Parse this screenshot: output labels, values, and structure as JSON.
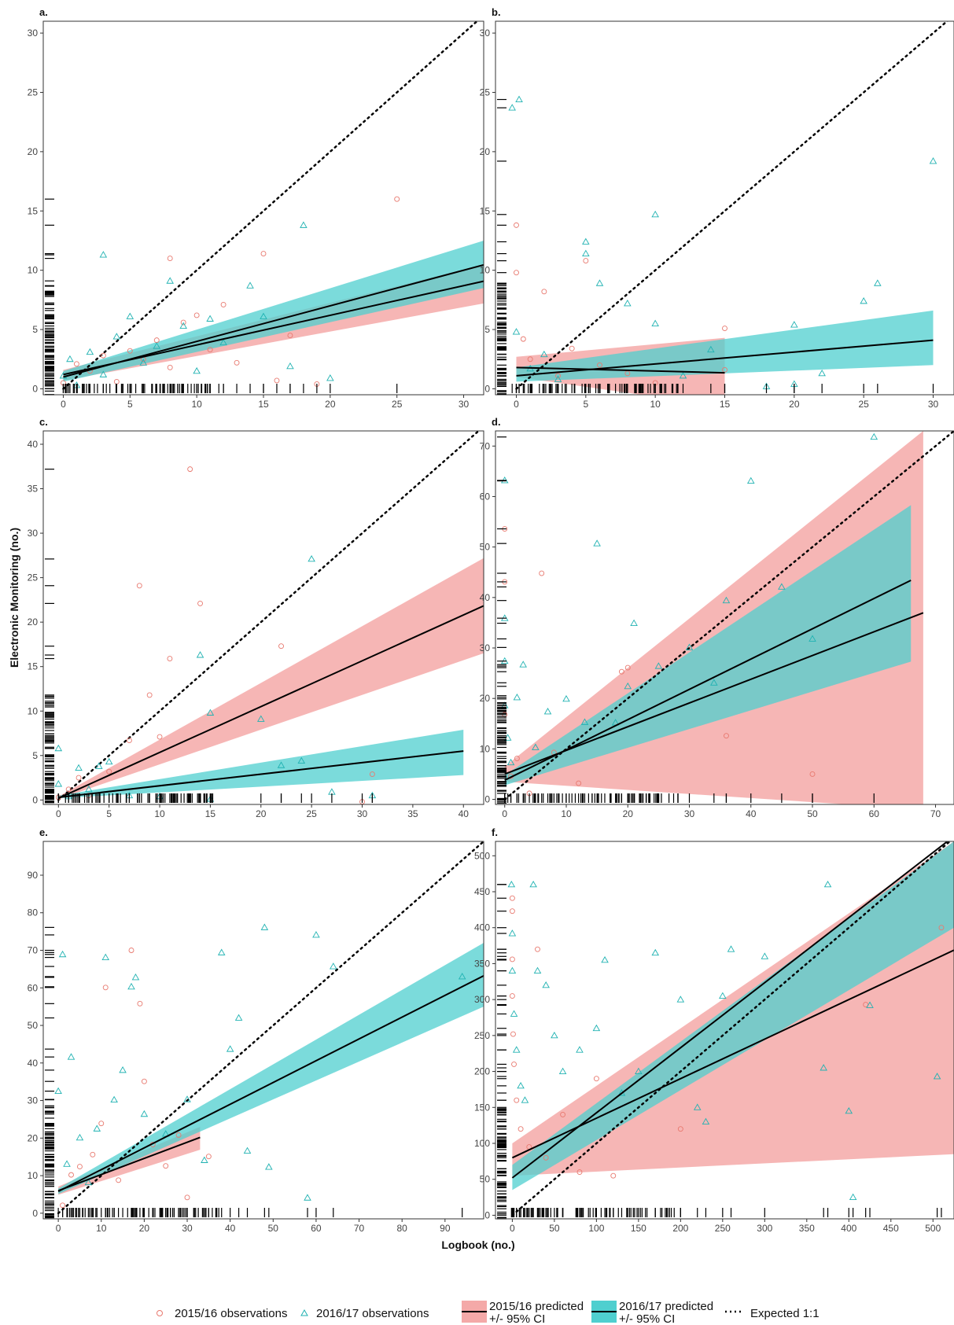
{
  "figure": {
    "ylabel": "Electronic Monitoring (no.)",
    "xlabel": "Logbook (no.)"
  },
  "legend": {
    "obs_2015": "2015/16 observations",
    "obs_2016": "2016/17 observations",
    "pred_2015_line1": "2015/16 predicted",
    "pred_2015_line2": "+/- 95% CI",
    "pred_2016_line1": "2016/17 predicted",
    "pred_2016_line2": "+/- 95% CI",
    "expected": "Expected 1:1"
  },
  "colors": {
    "obs_2015": "#e8796f",
    "obs_2016": "#20b2b2",
    "ci_2015": "#f4a9a8",
    "ci_2016": "#4fcfcf",
    "line": "#000000"
  },
  "chart_data": [
    {
      "label": "a.",
      "type": "scatter",
      "xlim": [
        -1.5,
        31.5
      ],
      "ylim": [
        -0.5,
        31
      ],
      "xticks": [
        0,
        5,
        10,
        15,
        20,
        25,
        30
      ],
      "yticks": [
        0,
        5,
        10,
        15,
        20,
        25,
        30
      ],
      "series": [
        {
          "name": "2015/16",
          "intercept": 1.2,
          "slope": 0.25,
          "xmax": 31.5,
          "ci": [
            [
              0,
              0.7,
              1.6
            ],
            [
              31.5,
              7.2,
              10.5
            ]
          ]
        },
        {
          "name": "2016/17",
          "intercept": 1.0,
          "slope": 0.3,
          "xmax": 31.5,
          "ci": [
            [
              0,
              0.6,
              1.5
            ],
            [
              31.5,
              8.5,
              12.5
            ]
          ]
        }
      ],
      "obs_2015": [
        [
          0,
          0.5
        ],
        [
          1,
          2.1
        ],
        [
          2,
          1.5
        ],
        [
          3,
          2.8
        ],
        [
          4,
          0.6
        ],
        [
          5,
          3.2
        ],
        [
          6,
          2.5
        ],
        [
          7,
          4.1
        ],
        [
          8,
          11
        ],
        [
          8,
          1.8
        ],
        [
          9,
          5.6
        ],
        [
          10,
          6.2
        ],
        [
          11,
          3.3
        ],
        [
          12,
          7.1
        ],
        [
          13,
          2.2
        ],
        [
          15,
          11.4
        ],
        [
          16,
          0.7
        ],
        [
          17,
          4.5
        ],
        [
          19,
          0.4
        ],
        [
          25,
          16
        ]
      ],
      "obs_2016": [
        [
          0,
          1.1
        ],
        [
          0.5,
          2.5
        ],
        [
          1,
          0.3
        ],
        [
          2,
          3.1
        ],
        [
          3,
          11.3
        ],
        [
          3,
          1.2
        ],
        [
          4,
          4.4
        ],
        [
          5,
          6.1
        ],
        [
          6,
          2.2
        ],
        [
          7,
          3.6
        ],
        [
          8,
          9.1
        ],
        [
          9,
          5.3
        ],
        [
          10,
          1.5
        ],
        [
          11,
          5.9
        ],
        [
          12,
          3.9
        ],
        [
          14,
          8.7
        ],
        [
          15,
          6.1
        ],
        [
          17,
          1.9
        ],
        [
          18,
          13.8
        ],
        [
          20,
          0.9
        ]
      ]
    },
    {
      "label": "b.",
      "type": "scatter",
      "xlim": [
        -1.5,
        31.5
      ],
      "ylim": [
        -0.5,
        31
      ],
      "xticks": [
        0,
        5,
        10,
        15,
        20,
        25,
        30
      ],
      "yticks": [
        0,
        5,
        10,
        15,
        20,
        25,
        30
      ],
      "series": [
        {
          "name": "2015/16",
          "intercept": 1.8,
          "slope": -0.03,
          "xmax": 15,
          "ci": [
            [
              0,
              1.0,
              2.7
            ],
            [
              15,
              -1.5,
              4.3
            ]
          ]
        },
        {
          "name": "2016/17",
          "intercept": 1.1,
          "slope": 0.1,
          "xmax": 30,
          "ci": [
            [
              0,
              0.6,
              1.8
            ],
            [
              30,
              2.0,
              6.6
            ]
          ]
        }
      ],
      "obs_2015": [
        [
          0,
          13.8
        ],
        [
          0,
          9.8
        ],
        [
          0.5,
          4.2
        ],
        [
          1,
          2.5
        ],
        [
          2,
          8.2
        ],
        [
          3,
          1.1
        ],
        [
          4,
          3.4
        ],
        [
          5,
          10.8
        ],
        [
          6,
          2.0
        ],
        [
          8,
          1.3
        ],
        [
          10,
          0.5
        ],
        [
          15,
          5.1
        ],
        [
          15,
          1.6
        ]
      ],
      "obs_2016": [
        [
          -0.3,
          23.7
        ],
        [
          0.2,
          24.4
        ],
        [
          0,
          4.8
        ],
        [
          1,
          1.7
        ],
        [
          2,
          2.9
        ],
        [
          3,
          0.8
        ],
        [
          5,
          12.4
        ],
        [
          5,
          11.4
        ],
        [
          6,
          8.9
        ],
        [
          8,
          7.2
        ],
        [
          10,
          14.7
        ],
        [
          10,
          5.5
        ],
        [
          12,
          1.1
        ],
        [
          14,
          3.3
        ],
        [
          18,
          0.2
        ],
        [
          20,
          5.4
        ],
        [
          20,
          0.4
        ],
        [
          22,
          1.3
        ],
        [
          25,
          7.4
        ],
        [
          26,
          8.9
        ],
        [
          30,
          19.2
        ]
      ]
    },
    {
      "label": "c.",
      "type": "scatter",
      "xlim": [
        -1.5,
        42
      ],
      "ylim": [
        -0.5,
        41.5
      ],
      "xticks": [
        0,
        5,
        10,
        15,
        20,
        25,
        30,
        35,
        40
      ],
      "yticks": [
        0,
        5,
        10,
        15,
        20,
        25,
        30,
        35,
        40
      ],
      "series": [
        {
          "name": "2015/16",
          "intercept": 0.2,
          "slope": 0.515,
          "xmax": 42,
          "ci": [
            [
              0,
              0.1,
              0.4
            ],
            [
              42,
              16.5,
              27.2
            ]
          ]
        },
        {
          "name": "2016/17",
          "intercept": 0.3,
          "slope": 0.13,
          "xmax": 40,
          "ci": [
            [
              0,
              0.2,
              0.5
            ],
            [
              40,
              2.8,
              7.9
            ]
          ]
        }
      ],
      "obs_2015": [
        [
          0,
          0.3
        ],
        [
          1,
          1.2
        ],
        [
          2,
          2.5
        ],
        [
          3,
          0.5
        ],
        [
          5,
          3.2
        ],
        [
          7,
          6.7
        ],
        [
          8,
          24.1
        ],
        [
          9,
          11.8
        ],
        [
          10,
          7.1
        ],
        [
          11,
          15.9
        ],
        [
          13,
          37.2
        ],
        [
          14,
          22.1
        ],
        [
          22,
          17.3
        ],
        [
          31,
          2.9
        ],
        [
          30,
          -0.2
        ]
      ],
      "obs_2016": [
        [
          0,
          5.8
        ],
        [
          0,
          1.8
        ],
        [
          1,
          0.4
        ],
        [
          2,
          3.6
        ],
        [
          3,
          1.2
        ],
        [
          4,
          3.8
        ],
        [
          5,
          4.3
        ],
        [
          7,
          0.5
        ],
        [
          10,
          0.4
        ],
        [
          14,
          16.3
        ],
        [
          15,
          9.8
        ],
        [
          15,
          0.1
        ],
        [
          20,
          9.1
        ],
        [
          22,
          3.9
        ],
        [
          24,
          4.4
        ],
        [
          25,
          27.1
        ],
        [
          27,
          0.9
        ],
        [
          31,
          0.5
        ]
      ]
    },
    {
      "label": "d.",
      "type": "scatter",
      "xlim": [
        -1.5,
        73
      ],
      "ylim": [
        -1,
        73
      ],
      "xticks": [
        0,
        10,
        20,
        30,
        40,
        50,
        60,
        70
      ],
      "yticks": [
        0,
        10,
        20,
        30,
        40,
        50,
        60,
        70
      ],
      "series": [
        {
          "name": "2015/16",
          "intercept": 5.0,
          "slope": 0.47,
          "xmax": 68,
          "ci": [
            [
              0,
              3.5,
              6.5
            ],
            [
              68,
              -2,
              73
            ]
          ]
        },
        {
          "name": "2016/17",
          "intercept": 3.8,
          "slope": 0.6,
          "xmax": 66,
          "ci": [
            [
              0,
              2.8,
              4.8
            ],
            [
              66,
              27.3,
              58.3
            ]
          ]
        }
      ],
      "obs_2015": [
        [
          0,
          53.6
        ],
        [
          0,
          43.1
        ],
        [
          0,
          16.8
        ],
        [
          1,
          4.6
        ],
        [
          2,
          8.1
        ],
        [
          4,
          1.2
        ],
        [
          6,
          44.8
        ],
        [
          8,
          9.3
        ],
        [
          12,
          3.2
        ],
        [
          19,
          25.3
        ],
        [
          20,
          26.1
        ],
        [
          36,
          12.6
        ],
        [
          50,
          5.0
        ]
      ],
      "obs_2016": [
        [
          0,
          63.2
        ],
        [
          0,
          35.9
        ],
        [
          0,
          27.4
        ],
        [
          0,
          18.6
        ],
        [
          0.5,
          12.2
        ],
        [
          1,
          7.3
        ],
        [
          2,
          20.2
        ],
        [
          3,
          26.7
        ],
        [
          5,
          10.3
        ],
        [
          7,
          17.4
        ],
        [
          10,
          19.9
        ],
        [
          13,
          15.3
        ],
        [
          15,
          50.7
        ],
        [
          18,
          15.2
        ],
        [
          20,
          22.4
        ],
        [
          21,
          34.9
        ],
        [
          25,
          26.4
        ],
        [
          30,
          30.1
        ],
        [
          34,
          23.1
        ],
        [
          36,
          39.4
        ],
        [
          40,
          63.1
        ],
        [
          45,
          42.1
        ],
        [
          50,
          31.8
        ],
        [
          60,
          71.8
        ]
      ]
    },
    {
      "label": "e.",
      "type": "scatter",
      "xlim": [
        -3.5,
        99
      ],
      "ylim": [
        -1.5,
        99
      ],
      "xticks": [
        0,
        10,
        20,
        30,
        40,
        50,
        60,
        70,
        80,
        90
      ],
      "yticks": [
        0,
        10,
        20,
        30,
        40,
        50,
        60,
        70,
        80,
        90
      ],
      "series": [
        {
          "name": "2015/16",
          "intercept": 6.0,
          "slope": 0.43,
          "xmax": 33,
          "ci": [
            [
              0,
              4.9,
              7.1
            ],
            [
              33,
              16.9,
              23.0
            ]
          ]
        },
        {
          "name": "2016/17",
          "intercept": 5.8,
          "slope": 0.58,
          "xmax": 99,
          "ci": [
            [
              0,
              5.1,
              6.6
            ],
            [
              99,
              55.0,
              72.0
            ]
          ]
        }
      ],
      "obs_2015": [
        [
          1,
          2.1
        ],
        [
          3,
          10.2
        ],
        [
          5,
          12.4
        ],
        [
          8,
          15.6
        ],
        [
          10,
          23.9
        ],
        [
          11,
          60.1
        ],
        [
          14,
          8.8
        ],
        [
          17,
          70.0
        ],
        [
          19,
          55.8
        ],
        [
          20,
          35.1
        ],
        [
          22,
          18.3
        ],
        [
          25,
          12.6
        ],
        [
          28,
          20.8
        ],
        [
          30,
          4.2
        ],
        [
          35,
          15.1
        ]
      ],
      "obs_2016": [
        [
          0,
          32.5
        ],
        [
          1,
          68.9
        ],
        [
          2,
          13.1
        ],
        [
          3,
          41.6
        ],
        [
          5,
          20.1
        ],
        [
          7,
          8.2
        ],
        [
          9,
          22.5
        ],
        [
          11,
          68.1
        ],
        [
          13,
          30.2
        ],
        [
          15,
          38.1
        ],
        [
          17,
          60.3
        ],
        [
          18,
          62.8
        ],
        [
          20,
          26.4
        ],
        [
          25,
          21.1
        ],
        [
          30,
          30.3
        ],
        [
          34,
          14.1
        ],
        [
          38,
          69.4
        ],
        [
          40,
          43.7
        ],
        [
          42,
          52.0
        ],
        [
          44,
          16.6
        ],
        [
          48,
          76.1
        ],
        [
          49,
          12.3
        ],
        [
          58,
          4.1
        ],
        [
          60,
          74.1
        ],
        [
          64,
          65.7
        ],
        [
          94,
          63.0
        ]
      ]
    },
    {
      "label": "f.",
      "type": "scatter",
      "xlim": [
        -20,
        525
      ],
      "ylim": [
        -5,
        520
      ],
      "xticks": [
        0,
        50,
        100,
        150,
        200,
        250,
        300,
        350,
        400,
        450,
        500
      ],
      "yticks": [
        0,
        50,
        100,
        150,
        200,
        250,
        300,
        350,
        400,
        450,
        500
      ],
      "series": [
        {
          "name": "2015/16",
          "intercept": 80,
          "slope": 0.55,
          "xmax": 525,
          "ci": [
            [
              0,
              55,
              100
            ],
            [
              525,
              85,
              520
            ]
          ]
        },
        {
          "name": "2016/17",
          "intercept": 52,
          "slope": 0.905,
          "xmax": 525,
          "ci": [
            [
              0,
              35,
              70
            ],
            [
              525,
              400,
              520
            ]
          ]
        }
      ],
      "obs_2015": [
        [
          0,
          441
        ],
        [
          0,
          423
        ],
        [
          0,
          356
        ],
        [
          0,
          305
        ],
        [
          1,
          252
        ],
        [
          2,
          210
        ],
        [
          5,
          160
        ],
        [
          10,
          120
        ],
        [
          20,
          95
        ],
        [
          30,
          370
        ],
        [
          40,
          80
        ],
        [
          60,
          140
        ],
        [
          80,
          60
        ],
        [
          100,
          190
        ],
        [
          120,
          55
        ],
        [
          200,
          120
        ],
        [
          420,
          293
        ],
        [
          510,
          400
        ]
      ],
      "obs_2016": [
        [
          -1,
          460
        ],
        [
          0,
          392
        ],
        [
          0,
          340
        ],
        [
          2,
          280
        ],
        [
          5,
          230
        ],
        [
          10,
          180
        ],
        [
          15,
          160
        ],
        [
          25,
          460
        ],
        [
          30,
          340
        ],
        [
          40,
          320
        ],
        [
          50,
          250
        ],
        [
          60,
          200
        ],
        [
          80,
          230
        ],
        [
          100,
          260
        ],
        [
          110,
          355
        ],
        [
          130,
          170
        ],
        [
          150,
          200
        ],
        [
          170,
          365
        ],
        [
          200,
          300
        ],
        [
          220,
          150
        ],
        [
          230,
          130
        ],
        [
          250,
          305
        ],
        [
          260,
          370
        ],
        [
          300,
          360
        ],
        [
          370,
          205
        ],
        [
          375,
          460
        ],
        [
          400,
          145
        ],
        [
          405,
          25
        ],
        [
          425,
          292
        ],
        [
          505,
          193
        ]
      ]
    }
  ]
}
